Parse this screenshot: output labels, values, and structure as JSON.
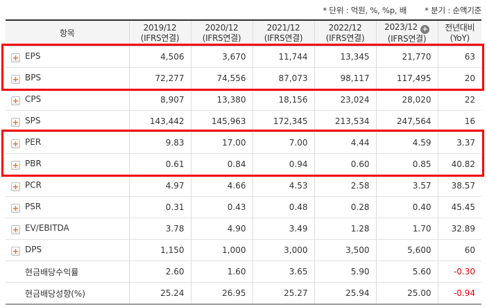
{
  "notes": {
    "unit_label": "* 단위 : 억원, %, %p, 배",
    "basis_label": "* 분기 : 순액기준"
  },
  "table": {
    "item_header": "항목",
    "year_columns": [
      {
        "period": "2019/12",
        "standard": "(IFRS연결)"
      },
      {
        "period": "2020/12",
        "standard": "(IFRS연결)"
      },
      {
        "period": "2021/12",
        "standard": "(IFRS연결)"
      },
      {
        "period": "2022/12",
        "standard": "(IFRS연결)"
      },
      {
        "period": "2023/12",
        "standard": "(IFRS연결)"
      }
    ],
    "add_column_icon": "+",
    "expand_icon_glyph": "+",
    "yoy_header": {
      "line1": "전년대비",
      "line2": "(YoY)"
    },
    "rows": [
      {
        "label": "EPS",
        "has_expand_icon": true,
        "highlighted": true,
        "values": [
          "4,506",
          "3,670",
          "11,744",
          "13,345",
          "21,770",
          "63"
        ]
      },
      {
        "label": "BPS",
        "has_expand_icon": true,
        "highlighted": true,
        "values": [
          "72,277",
          "74,556",
          "87,073",
          "98,117",
          "117,495",
          "20"
        ]
      },
      {
        "label": "CPS",
        "has_expand_icon": true,
        "highlighted": false,
        "values": [
          "8,907",
          "13,380",
          "18,156",
          "23,024",
          "28,020",
          "22"
        ]
      },
      {
        "label": "SPS",
        "has_expand_icon": true,
        "highlighted": false,
        "values": [
          "143,442",
          "145,963",
          "172,345",
          "213,534",
          "247,564",
          "16"
        ]
      },
      {
        "label": "PER",
        "has_expand_icon": true,
        "highlighted": true,
        "values": [
          "9.83",
          "17.00",
          "7.00",
          "4.44",
          "4.59",
          "3.37"
        ]
      },
      {
        "label": "PBR",
        "has_expand_icon": true,
        "highlighted": true,
        "values": [
          "0.61",
          "0.84",
          "0.94",
          "0.60",
          "0.85",
          "40.82"
        ]
      },
      {
        "label": "PCR",
        "has_expand_icon": true,
        "highlighted": false,
        "values": [
          "4.97",
          "4.66",
          "4.53",
          "2.58",
          "3.57",
          "38.57"
        ]
      },
      {
        "label": "PSR",
        "has_expand_icon": true,
        "highlighted": false,
        "values": [
          "0.31",
          "0.43",
          "0.48",
          "0.28",
          "0.40",
          "45.45"
        ]
      },
      {
        "label": "EV/EBITDA",
        "has_expand_icon": true,
        "highlighted": false,
        "values": [
          "3.78",
          "4.90",
          "3.49",
          "1.28",
          "1.70",
          "32.89"
        ]
      },
      {
        "label": "DPS",
        "has_expand_icon": true,
        "highlighted": false,
        "values": [
          "1,150",
          "1,000",
          "3,000",
          "3,500",
          "5,600",
          "60"
        ]
      },
      {
        "label": "현금배당수익률",
        "has_expand_icon": false,
        "highlighted": false,
        "values": [
          "2.60",
          "1.60",
          "3.65",
          "5.90",
          "5.60",
          "-0.30"
        ]
      },
      {
        "label": "현금배당성향(%)",
        "has_expand_icon": false,
        "highlighted": false,
        "values": [
          "25.24",
          "26.95",
          "25.27",
          "25.94",
          "25.00",
          "-0.94"
        ]
      }
    ]
  },
  "colors": {
    "accent_orange": "#f2691a",
    "highlight_border_red": "#f40000",
    "negative_value_red": "#e60000",
    "header_bg": "#f4f4f4"
  }
}
